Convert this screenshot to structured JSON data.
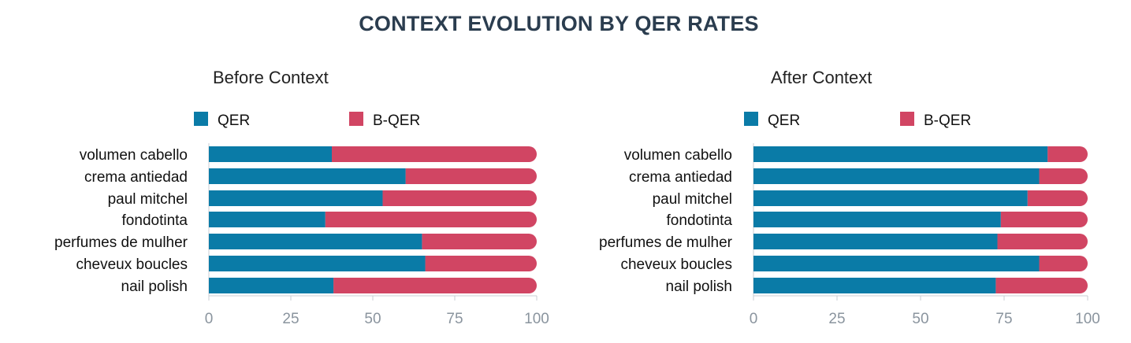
{
  "title": "CONTEXT EVOLUTION BY QER RATES",
  "colors": {
    "qer": "#0a7ba7",
    "bqer": "#d14563",
    "axis": "#c9ced3"
  },
  "chart_data": [
    {
      "type": "bar",
      "orientation": "horizontal",
      "stacked": true,
      "title": "Before Context",
      "categories": [
        "volumen cabello",
        "crema antiedad",
        "paul mitchel",
        "fondotinta",
        "perfumes de mulher",
        "cheveux boucles",
        "nail polish"
      ],
      "series": [
        {
          "name": "QER",
          "values": [
            37.5,
            60,
            53,
            35.5,
            65,
            66,
            38
          ]
        },
        {
          "name": "B-QER",
          "values": [
            62.5,
            40,
            47,
            64.5,
            35,
            34,
            62
          ]
        }
      ],
      "xlim": [
        0,
        100
      ],
      "xticks": [
        "0",
        "25",
        "50",
        "75",
        "100"
      ],
      "legend_position": "top"
    },
    {
      "type": "bar",
      "orientation": "horizontal",
      "stacked": true,
      "title": "After Context",
      "categories": [
        "volumen cabello",
        "crema antiedad",
        "paul mitchel",
        "fondotinta",
        "perfumes de mulher",
        "cheveux boucles",
        "nail polish"
      ],
      "series": [
        {
          "name": "QER",
          "values": [
            88,
            85.5,
            82,
            74,
            73,
            85.5,
            72.5
          ]
        },
        {
          "name": "B-QER",
          "values": [
            12,
            14.5,
            18,
            26,
            27,
            14.5,
            27.5
          ]
        }
      ],
      "xlim": [
        0,
        100
      ],
      "xticks": [
        "0",
        "25",
        "50",
        "75",
        "100"
      ],
      "legend_position": "top"
    }
  ]
}
